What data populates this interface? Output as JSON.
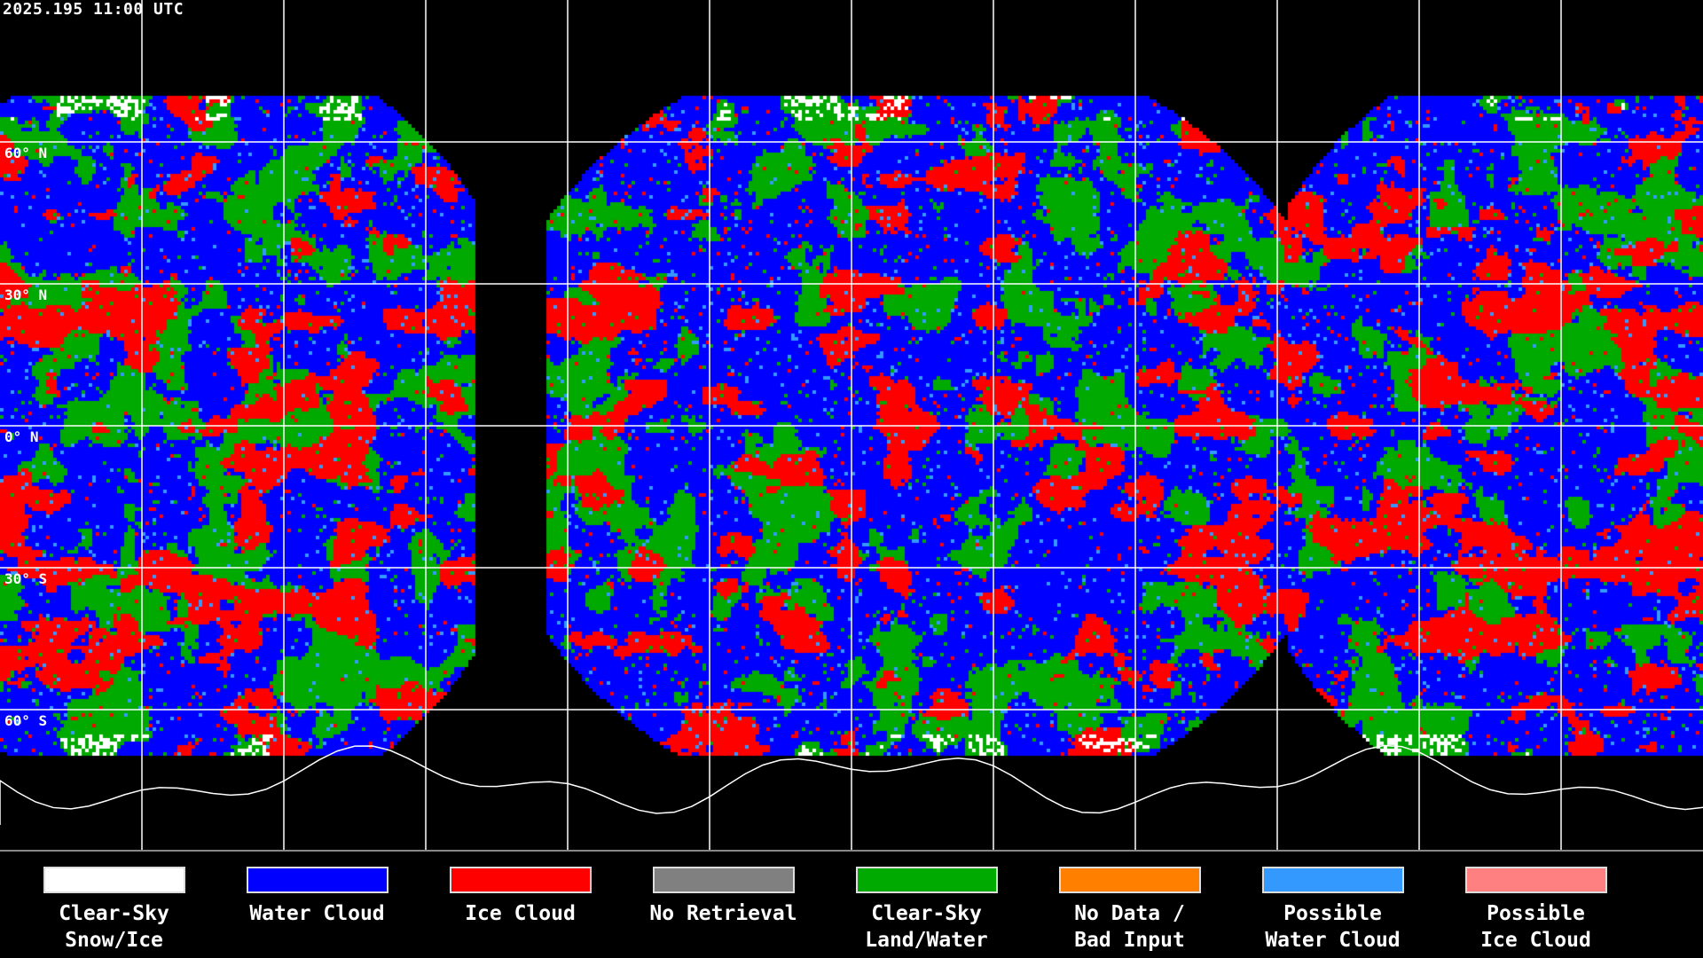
{
  "timestamp": "2025.195 11:00 UTC",
  "latitude_labels": [
    "60° N",
    "30° N",
    "0° N",
    "30° S",
    "60° S"
  ],
  "legend": [
    {
      "label": "Clear-Sky\nSnow/Ice",
      "color": "#ffffff"
    },
    {
      "label": "Water Cloud",
      "color": "#0000ff"
    },
    {
      "label": "Ice Cloud",
      "color": "#ff0000"
    },
    {
      "label": "No Retrieval",
      "color": "#808080"
    },
    {
      "label": "Clear-Sky\nLand/Water",
      "color": "#00aa00"
    },
    {
      "label": "No Data /\nBad Input",
      "color": "#ff8000"
    },
    {
      "label": "Possible\nWater Cloud",
      "color": "#3399ff"
    },
    {
      "label": "Possible\nIce Cloud",
      "color": "#ff8080"
    }
  ]
}
